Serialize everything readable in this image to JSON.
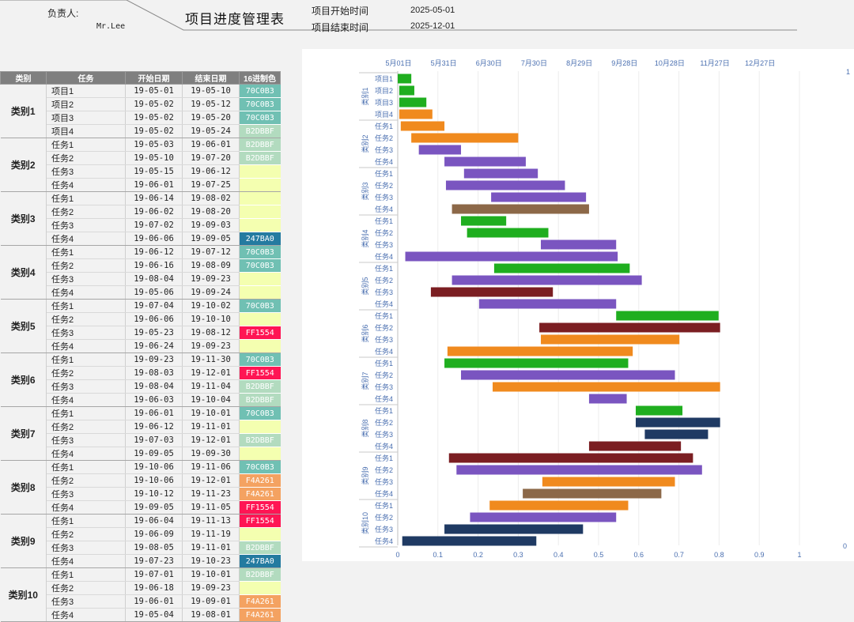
{
  "header": {
    "owner_label": "负责人:",
    "owner_name": "Mr.Lee",
    "title": "项目进度管理表",
    "start_label": "项目开始时间",
    "start_value": "2025-05-01",
    "end_label": "项目结束时间",
    "end_value": "2025-12-01"
  },
  "table": {
    "headers": [
      "类别",
      "任务",
      "开始日期",
      "结束日期",
      "16进制色"
    ],
    "groups": [
      {
        "name": "类别1",
        "rows": [
          {
            "task": "项目1",
            "start": "19-05-01",
            "end": "19-05-10",
            "hex": "70C0B3"
          },
          {
            "task": "项目2",
            "start": "19-05-02",
            "end": "19-05-12",
            "hex": "70C0B3"
          },
          {
            "task": "项目3",
            "start": "19-05-02",
            "end": "19-05-20",
            "hex": "70C0B3"
          },
          {
            "task": "项目4",
            "start": "19-05-02",
            "end": "19-05-24",
            "hex": "B2DBBF"
          }
        ]
      },
      {
        "name": "类别2",
        "rows": [
          {
            "task": "任务1",
            "start": "19-05-03",
            "end": "19-06-01",
            "hex": "B2DBBF"
          },
          {
            "task": "任务2",
            "start": "19-05-10",
            "end": "19-07-20",
            "hex": "B2DBBF"
          },
          {
            "task": "任务3",
            "start": "19-05-15",
            "end": "19-06-12",
            "hex": ""
          },
          {
            "task": "任务4",
            "start": "19-06-01",
            "end": "19-07-25",
            "hex": ""
          }
        ]
      },
      {
        "name": "类别3",
        "rows": [
          {
            "task": "任务1",
            "start": "19-06-14",
            "end": "19-08-02",
            "hex": ""
          },
          {
            "task": "任务2",
            "start": "19-06-02",
            "end": "19-08-20",
            "hex": ""
          },
          {
            "task": "任务3",
            "start": "19-07-02",
            "end": "19-09-03",
            "hex": ""
          },
          {
            "task": "任务4",
            "start": "19-06-06",
            "end": "19-09-05",
            "hex": "247BA0"
          }
        ]
      },
      {
        "name": "类别4",
        "rows": [
          {
            "task": "任务1",
            "start": "19-06-12",
            "end": "19-07-12",
            "hex": "70C0B3"
          },
          {
            "task": "任务2",
            "start": "19-06-16",
            "end": "19-08-09",
            "hex": "70C0B3"
          },
          {
            "task": "任务3",
            "start": "19-08-04",
            "end": "19-09-23",
            "hex": ""
          },
          {
            "task": "任务4",
            "start": "19-05-06",
            "end": "19-09-24",
            "hex": ""
          }
        ]
      },
      {
        "name": "类别5",
        "rows": [
          {
            "task": "任务1",
            "start": "19-07-04",
            "end": "19-10-02",
            "hex": "70C0B3"
          },
          {
            "task": "任务2",
            "start": "19-06-06",
            "end": "19-10-10",
            "hex": ""
          },
          {
            "task": "任务3",
            "start": "19-05-23",
            "end": "19-08-12",
            "hex": "FF1554"
          },
          {
            "task": "任务4",
            "start": "19-06-24",
            "end": "19-09-23",
            "hex": ""
          }
        ]
      },
      {
        "name": "类别6",
        "rows": [
          {
            "task": "任务1",
            "start": "19-09-23",
            "end": "19-11-30",
            "hex": "70C0B3"
          },
          {
            "task": "任务2",
            "start": "19-08-03",
            "end": "19-12-01",
            "hex": "FF1554"
          },
          {
            "task": "任务3",
            "start": "19-08-04",
            "end": "19-11-04",
            "hex": "B2DBBF"
          },
          {
            "task": "任务4",
            "start": "19-06-03",
            "end": "19-10-04",
            "hex": "B2DBBF"
          }
        ]
      },
      {
        "name": "类别7",
        "rows": [
          {
            "task": "任务1",
            "start": "19-06-01",
            "end": "19-10-01",
            "hex": "70C0B3"
          },
          {
            "task": "任务2",
            "start": "19-06-12",
            "end": "19-11-01",
            "hex": ""
          },
          {
            "task": "任务3",
            "start": "19-07-03",
            "end": "19-12-01",
            "hex": "B2DBBF"
          },
          {
            "task": "任务4",
            "start": "19-09-05",
            "end": "19-09-30",
            "hex": ""
          }
        ]
      },
      {
        "name": "类别8",
        "rows": [
          {
            "task": "任务1",
            "start": "19-10-06",
            "end": "19-11-06",
            "hex": "70C0B3"
          },
          {
            "task": "任务2",
            "start": "19-10-06",
            "end": "19-12-01",
            "hex": "F4A261"
          },
          {
            "task": "任务3",
            "start": "19-10-12",
            "end": "19-11-23",
            "hex": "F4A261"
          },
          {
            "task": "任务4",
            "start": "19-09-05",
            "end": "19-11-05",
            "hex": "FF1554"
          }
        ]
      },
      {
        "name": "类别9",
        "rows": [
          {
            "task": "任务1",
            "start": "19-06-04",
            "end": "19-11-13",
            "hex": "FF1554"
          },
          {
            "task": "任务2",
            "start": "19-06-09",
            "end": "19-11-19",
            "hex": ""
          },
          {
            "task": "任务3",
            "start": "19-08-05",
            "end": "19-11-01",
            "hex": "B2DBBF"
          },
          {
            "task": "任务4",
            "start": "19-07-23",
            "end": "19-10-23",
            "hex": "247BA0"
          }
        ]
      },
      {
        "name": "类别10",
        "rows": [
          {
            "task": "任务1",
            "start": "19-07-01",
            "end": "19-10-01",
            "hex": "B2DBBF"
          },
          {
            "task": "任务2",
            "start": "19-06-18",
            "end": "19-09-23",
            "hex": ""
          },
          {
            "task": "任务3",
            "start": "19-06-01",
            "end": "19-09-01",
            "hex": "F4A261"
          },
          {
            "task": "任务4",
            "start": "19-05-04",
            "end": "19-08-01",
            "hex": "F4A261"
          }
        ]
      }
    ]
  },
  "colors": {
    "70C0B3": "#70c0b3",
    "B2DBBF": "#b2dbbf",
    "247BA0": "#247ba0",
    "FF1554": "#ff1554",
    "F4A261": "#f4a261",
    "empty": "#f4ffb0"
  },
  "chart_data": {
    "type": "bar",
    "orientation": "horizontal-gantt",
    "top_axis_ticks": [
      "5月01日",
      "5月31日",
      "6月30日",
      "7月30日",
      "8月29日",
      "9月28日",
      "10月28日",
      "11月27日",
      "12月27日"
    ],
    "bottom_axis_ticks": [
      "0",
      "0.1",
      "0.2",
      "0.3",
      "0.4",
      "0.5",
      "0.6",
      "0.7",
      "0.8",
      "0.9",
      "1"
    ],
    "right_axis": {
      "top": "1",
      "bottom": "0"
    },
    "grid": true,
    "groups": [
      {
        "name": "类别1",
        "rows": [
          {
            "label": "项目1",
            "start": "2025-05-01",
            "end": "2025-05-10",
            "color": "#1fae1f"
          },
          {
            "label": "项目2",
            "start": "2025-05-02",
            "end": "2025-05-12",
            "color": "#1fae1f"
          },
          {
            "label": "项目3",
            "start": "2025-05-02",
            "end": "2025-05-20",
            "color": "#1fae1f"
          },
          {
            "label": "项目4",
            "start": "2025-05-02",
            "end": "2025-05-24",
            "color": "#f08a1e"
          }
        ]
      },
      {
        "name": "类别2",
        "rows": [
          {
            "label": "任务1",
            "start": "2025-05-03",
            "end": "2025-06-01",
            "color": "#f08a1e"
          },
          {
            "label": "任务2",
            "start": "2025-05-10",
            "end": "2025-07-20",
            "color": "#f08a1e"
          },
          {
            "label": "任务3",
            "start": "2025-05-15",
            "end": "2025-06-12",
            "color": "#7a55c0"
          },
          {
            "label": "任务4",
            "start": "2025-06-01",
            "end": "2025-07-25",
            "color": "#7a55c0"
          }
        ]
      },
      {
        "name": "类别3",
        "rows": [
          {
            "label": "任务1",
            "start": "2025-06-14",
            "end": "2025-08-02",
            "color": "#7a55c0"
          },
          {
            "label": "任务2",
            "start": "2025-06-02",
            "end": "2025-08-20",
            "color": "#7a55c0"
          },
          {
            "label": "任务3",
            "start": "2025-07-02",
            "end": "2025-09-03",
            "color": "#7a55c0"
          },
          {
            "label": "任务4",
            "start": "2025-06-06",
            "end": "2025-09-05",
            "color": "#8c6848"
          }
        ]
      },
      {
        "name": "类别4",
        "rows": [
          {
            "label": "任务1",
            "start": "2025-06-12",
            "end": "2025-07-12",
            "color": "#1fae1f"
          },
          {
            "label": "任务2",
            "start": "2025-06-16",
            "end": "2025-08-09",
            "color": "#1fae1f"
          },
          {
            "label": "任务3",
            "start": "2025-08-04",
            "end": "2025-09-23",
            "color": "#7a55c0"
          },
          {
            "label": "任务4",
            "start": "2025-05-06",
            "end": "2025-09-24",
            "color": "#7a55c0"
          }
        ]
      },
      {
        "name": "类别5",
        "rows": [
          {
            "label": "任务1",
            "start": "2025-07-04",
            "end": "2025-10-02",
            "color": "#1fae1f"
          },
          {
            "label": "任务2",
            "start": "2025-06-06",
            "end": "2025-10-10",
            "color": "#7a55c0"
          },
          {
            "label": "任务3",
            "start": "2025-05-23",
            "end": "2025-08-12",
            "color": "#7b1e22"
          },
          {
            "label": "任务4",
            "start": "2025-06-24",
            "end": "2025-09-23",
            "color": "#7a55c0"
          }
        ]
      },
      {
        "name": "类别6",
        "rows": [
          {
            "label": "任务1",
            "start": "2025-09-23",
            "end": "2025-11-30",
            "color": "#1fae1f"
          },
          {
            "label": "任务2",
            "start": "2025-08-03",
            "end": "2025-12-01",
            "color": "#7b1e22"
          },
          {
            "label": "任务3",
            "start": "2025-08-04",
            "end": "2025-11-04",
            "color": "#f08a1e"
          },
          {
            "label": "任务4",
            "start": "2025-06-03",
            "end": "2025-10-04",
            "color": "#f08a1e"
          }
        ]
      },
      {
        "name": "类别7",
        "rows": [
          {
            "label": "任务1",
            "start": "2025-06-01",
            "end": "2025-10-01",
            "color": "#1fae1f"
          },
          {
            "label": "任务2",
            "start": "2025-06-12",
            "end": "2025-11-01",
            "color": "#7a55c0"
          },
          {
            "label": "任务3",
            "start": "2025-07-03",
            "end": "2025-12-01",
            "color": "#f08a1e"
          },
          {
            "label": "任务4",
            "start": "2025-09-05",
            "end": "2025-09-30",
            "color": "#7a55c0"
          }
        ]
      },
      {
        "name": "类别8",
        "rows": [
          {
            "label": "任务1",
            "start": "2025-10-06",
            "end": "2025-11-06",
            "color": "#1fae1f"
          },
          {
            "label": "任务2",
            "start": "2025-10-06",
            "end": "2025-12-01",
            "color": "#1f3a63"
          },
          {
            "label": "任务3",
            "start": "2025-10-12",
            "end": "2025-11-23",
            "color": "#1f3a63"
          },
          {
            "label": "任务4",
            "start": "2025-09-05",
            "end": "2025-11-05",
            "color": "#7b1e22"
          }
        ]
      },
      {
        "name": "类别9",
        "rows": [
          {
            "label": "任务1",
            "start": "2025-06-04",
            "end": "2025-11-13",
            "color": "#7b1e22"
          },
          {
            "label": "任务2",
            "start": "2025-06-09",
            "end": "2025-11-19",
            "color": "#7a55c0"
          },
          {
            "label": "任务3",
            "start": "2025-08-05",
            "end": "2025-11-01",
            "color": "#f08a1e"
          },
          {
            "label": "任务4",
            "start": "2025-07-23",
            "end": "2025-10-23",
            "color": "#8c6848"
          }
        ]
      },
      {
        "name": "类别10",
        "rows": [
          {
            "label": "任务1",
            "start": "2025-07-01",
            "end": "2025-10-01",
            "color": "#f08a1e"
          },
          {
            "label": "任务2",
            "start": "2025-06-18",
            "end": "2025-09-23",
            "color": "#7a55c0"
          },
          {
            "label": "任务3",
            "start": "2025-06-01",
            "end": "2025-09-01",
            "color": "#1f3a63"
          },
          {
            "label": "任务4",
            "start": "2025-05-04",
            "end": "2025-08-01",
            "color": "#1f3a63"
          }
        ]
      }
    ]
  }
}
